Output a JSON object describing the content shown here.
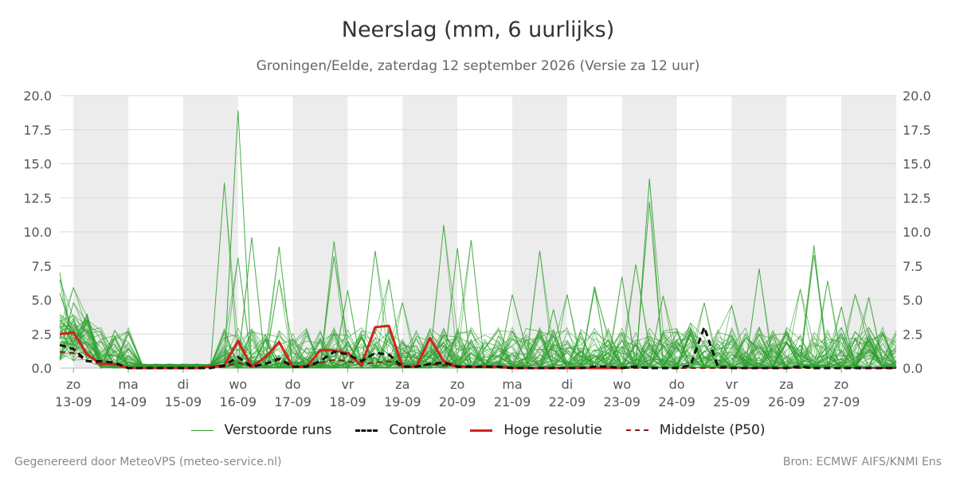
{
  "title": "Neerslag (mm, 6 uurlijks)",
  "subtitle": "Groningen/Eelde, zaterdag 12 september 2026 (Versie za 12 uur)",
  "footer_left": "Gegenereerd door MeteoVPS (meteo-service.nl)",
  "footer_right": "Bron: ECMWF AIFS/KNMI Ens",
  "colors": {
    "ensemble": "#2ca02c",
    "control": "#111111",
    "hires": "#d62020",
    "median": "#8b1a1a",
    "night_band": "#ececec",
    "grid": "#d9d9d9"
  },
  "legend": [
    {
      "label": "Verstoorde runs",
      "style": "ensemble"
    },
    {
      "label": "Controle",
      "style": "control"
    },
    {
      "label": "Hoge resolutie",
      "style": "hires"
    },
    {
      "label": "Middelste (P50)",
      "style": "median"
    }
  ],
  "chart_data": {
    "type": "line",
    "ylim": [
      0,
      20
    ],
    "yticks": [
      "0.0",
      "2.5",
      "5.0",
      "7.5",
      "10.0",
      "12.5",
      "15.0",
      "17.5",
      "20.0"
    ],
    "x_start_day": "13-09",
    "x_range_days": [
      -0.25,
      15.0
    ],
    "day_labels": [
      {
        "day": "zo",
        "date": "13-09"
      },
      {
        "day": "ma",
        "date": "14-09"
      },
      {
        "day": "di",
        "date": "15-09"
      },
      {
        "day": "wo",
        "date": "16-09"
      },
      {
        "day": "do",
        "date": "17-09"
      },
      {
        "day": "vr",
        "date": "18-09"
      },
      {
        "day": "za",
        "date": "19-09"
      },
      {
        "day": "zo",
        "date": "20-09"
      },
      {
        "day": "ma",
        "date": "21-09"
      },
      {
        "day": "di",
        "date": "22-09"
      },
      {
        "day": "wo",
        "date": "23-09"
      },
      {
        "day": "do",
        "date": "24-09"
      },
      {
        "day": "vr",
        "date": "25-09"
      },
      {
        "day": "za",
        "date": "26-09"
      },
      {
        "day": "zo",
        "date": "27-09"
      }
    ],
    "grey_bands_days": [
      [
        0,
        1
      ],
      [
        2,
        3
      ],
      [
        4,
        5
      ],
      [
        6,
        7
      ],
      [
        8,
        9
      ],
      [
        10,
        11
      ],
      [
        12,
        13
      ],
      [
        14,
        15
      ]
    ],
    "grid": true,
    "series": [
      {
        "name": "Hoge resolutie",
        "style": "hires",
        "x": [
          -0.25,
          0,
          0.25,
          0.5,
          0.75,
          1,
          1.25,
          1.5,
          1.75,
          2,
          2.25,
          2.5,
          2.75,
          3,
          3.25,
          3.5,
          3.75,
          4,
          4.25,
          4.5,
          4.75,
          5,
          5.25,
          5.5,
          5.75,
          6,
          6.25,
          6.5,
          6.75,
          7,
          7.25,
          7.5,
          7.75,
          8,
          8.25,
          8.5,
          8.75,
          9,
          9.25,
          9.5,
          9.75,
          10
        ],
        "y": [
          2.5,
          2.6,
          1.0,
          0.3,
          0.3,
          0.0,
          0.0,
          0.0,
          0.0,
          0.0,
          0.0,
          0.1,
          0.2,
          2.0,
          0.1,
          0.8,
          1.9,
          0.1,
          0.1,
          1.3,
          1.3,
          1.1,
          0.2,
          3.0,
          3.1,
          0.1,
          0.1,
          2.2,
          0.5,
          0.1,
          0.1,
          0.1,
          0.1,
          0.0,
          0.0,
          0.0,
          0.0,
          0.0,
          0.0,
          0.0,
          0.0,
          0.0
        ]
      },
      {
        "name": "Controle",
        "style": "control",
        "x": [
          -0.25,
          0,
          0.25,
          0.5,
          0.75,
          1,
          1.25,
          1.5,
          1.75,
          2,
          2.25,
          2.5,
          2.75,
          3,
          3.25,
          3.5,
          3.75,
          4,
          4.25,
          4.5,
          4.75,
          5,
          5.25,
          5.5,
          5.75,
          6,
          6.25,
          6.5,
          6.75,
          7,
          7.25,
          7.5,
          7.75,
          8,
          8.25,
          8.5,
          8.75,
          9,
          9.25,
          9.5,
          9.75,
          10,
          10.25,
          10.5,
          10.75,
          11,
          11.25,
          11.5,
          11.75,
          12,
          12.25,
          12.5,
          12.75,
          13,
          13.25,
          13.5,
          13.75,
          14,
          14.25,
          14.5,
          14.75,
          15
        ],
        "y": [
          1.7,
          1.4,
          0.5,
          0.5,
          0.4,
          0.0,
          0.0,
          0.0,
          0.0,
          0.0,
          0.0,
          0.0,
          0.2,
          0.8,
          0.1,
          0.3,
          0.7,
          0.1,
          0.1,
          0.5,
          1.2,
          1.0,
          0.5,
          1.1,
          1.0,
          0.1,
          0.1,
          0.3,
          0.4,
          0.1,
          0.1,
          0.1,
          0.1,
          0.0,
          0.0,
          0.0,
          0.0,
          0.0,
          0.0,
          0.1,
          0.1,
          0.0,
          0.1,
          0.0,
          0.0,
          0.0,
          0.2,
          3.0,
          0.1,
          0.0,
          0.0,
          0.0,
          0.0,
          0.0,
          0.1,
          0.0,
          0.0,
          0.0,
          0.0,
          0.0,
          0.0,
          0.0
        ]
      },
      {
        "name": "Middelste (P50)",
        "style": "median",
        "x": [
          -0.25,
          0,
          0.25,
          0.5,
          0.75,
          1,
          1.5,
          2,
          2.5,
          2.75,
          3,
          3.25,
          3.5,
          3.75,
          4,
          4.25,
          4.5,
          4.75,
          5,
          5.25,
          5.5,
          5.75,
          6,
          6.25,
          6.5,
          6.75,
          7,
          8,
          9,
          10,
          11,
          12,
          13,
          14,
          15
        ],
        "y": [
          1.2,
          1.1,
          0.5,
          0.3,
          0.3,
          0.0,
          0.0,
          0.0,
          0.0,
          0.1,
          0.4,
          0.1,
          0.3,
          0.6,
          0.1,
          0.1,
          0.4,
          0.6,
          0.5,
          0.3,
          0.4,
          0.5,
          0.1,
          0.1,
          0.3,
          0.2,
          0.1,
          0.0,
          0.0,
          0.0,
          0.0,
          0.0,
          0.0,
          0.0,
          0.0
        ]
      }
    ],
    "ensemble_peaks": [
      [
        -0.25,
        7.0
      ],
      [
        -0.25,
        6.5
      ],
      [
        -0.25,
        5.5
      ],
      [
        0.0,
        5.9
      ],
      [
        0.0,
        4.8
      ],
      [
        0.5,
        2.1
      ],
      [
        0.75,
        2.3
      ],
      [
        2.75,
        13.6
      ],
      [
        3.0,
        18.9
      ],
      [
        3.0,
        8.1
      ],
      [
        3.25,
        9.6
      ],
      [
        3.75,
        8.9
      ],
      [
        3.75,
        6.5
      ],
      [
        4.75,
        9.3
      ],
      [
        4.75,
        8.2
      ],
      [
        5.0,
        5.7
      ],
      [
        5.5,
        8.6
      ],
      [
        5.75,
        6.5
      ],
      [
        6.0,
        4.8
      ],
      [
        6.75,
        10.5
      ],
      [
        7.0,
        8.8
      ],
      [
        7.25,
        9.4
      ],
      [
        8.0,
        5.4
      ],
      [
        8.5,
        8.6
      ],
      [
        8.75,
        4.3
      ],
      [
        9.0,
        5.4
      ],
      [
        9.5,
        6.0
      ],
      [
        9.5,
        5.8
      ],
      [
        10.0,
        6.7
      ],
      [
        10.25,
        7.6
      ],
      [
        10.5,
        13.9
      ],
      [
        10.5,
        12.2
      ],
      [
        10.75,
        5.3
      ],
      [
        11.25,
        3.3
      ],
      [
        11.5,
        4.8
      ],
      [
        12.0,
        4.6
      ],
      [
        12.5,
        7.3
      ],
      [
        12.5,
        3.0
      ],
      [
        13.25,
        5.8
      ],
      [
        13.5,
        9.0
      ],
      [
        13.5,
        8.3
      ],
      [
        13.75,
        6.4
      ],
      [
        14.0,
        4.5
      ],
      [
        14.25,
        5.4
      ],
      [
        14.5,
        5.2
      ]
    ]
  }
}
